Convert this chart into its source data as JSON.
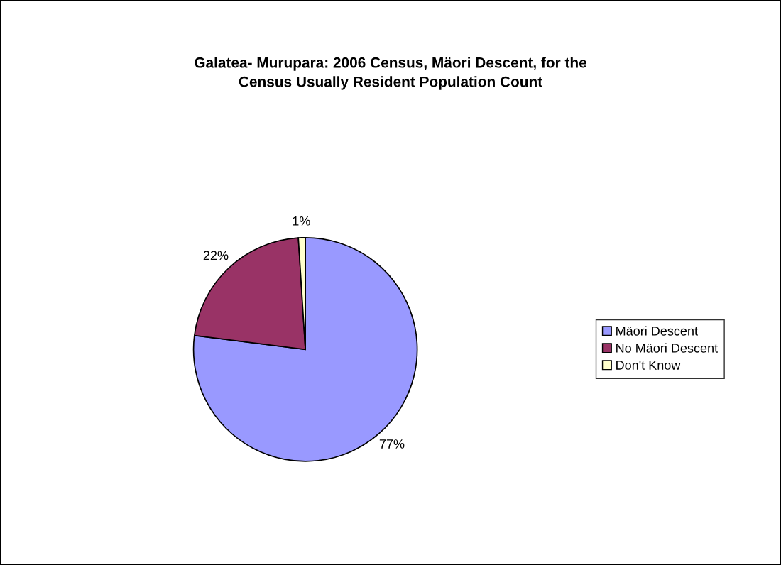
{
  "chart_data": {
    "type": "pie",
    "title": "Galatea- Murupara: 2006 Census, Mäori Descent, for the\nCensus Usually Resident Population Count",
    "categories": [
      "Mäori Descent",
      "No Mäori Descent",
      "Don't Know"
    ],
    "values": [
      77,
      22,
      1
    ],
    "colors": [
      "#9999ff",
      "#993366",
      "#ffffcc"
    ],
    "value_labels": [
      "77%",
      "22%",
      "1%"
    ],
    "legend": "right"
  }
}
